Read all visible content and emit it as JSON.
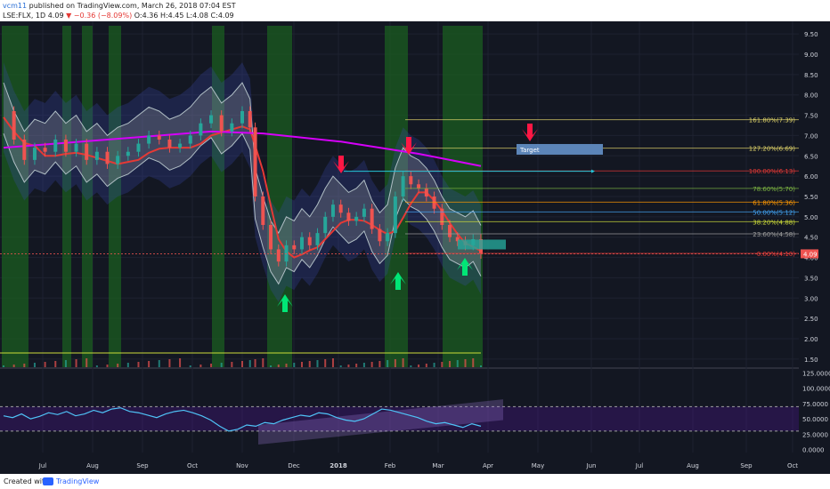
{
  "header": {
    "author": "vcm11",
    "published": "published on TradingView.com, March 26, 2018 07:04 EST",
    "symbol": "LSE:FLX, 1D",
    "last": "4.09",
    "change": "−0.36 (−8.09%)",
    "ohlc": "O:4.36 H:4.45 L:4.08 C:4.09"
  },
  "footer": {
    "created": "Created with",
    "brand": "TradingView"
  },
  "colors": {
    "background": "#131722",
    "up": "#26a69a",
    "down": "#ef5350",
    "green_band": "#1b5e20",
    "rsi": "#4fc3f7",
    "sma_long": "#d500f9",
    "bb": "#b0bec5",
    "arrow_down": "#ff1744",
    "arrow_up": "#00e676"
  },
  "chart_data": [
    {
      "type": "line",
      "panel": "price",
      "ylim": [
        1.3,
        9.7
      ],
      "y_ticks": [
        "9.50",
        "9.00",
        "8.50",
        "8.00",
        "7.50",
        "7.00",
        "6.50",
        "6.00",
        "5.50",
        "5.00",
        "4.50",
        "4.00",
        "3.50",
        "3.00",
        "2.50",
        "2.00",
        "1.50"
      ],
      "x_ticks": [
        "Jul",
        "Aug",
        "Sep",
        "Oct",
        "Nov",
        "Dec",
        "2018",
        "Feb",
        "Mar",
        "Apr",
        "May",
        "Jun",
        "Jul",
        "Aug",
        "Sep",
        "Oct"
      ],
      "last_price": "4.09",
      "price_series": [
        {
          "t": 0,
          "c": 7.6
        },
        {
          "t": 4,
          "c": 6.9
        },
        {
          "t": 8,
          "c": 6.4
        },
        {
          "t": 12,
          "c": 6.7
        },
        {
          "t": 16,
          "c": 6.6
        },
        {
          "t": 20,
          "c": 6.9
        },
        {
          "t": 24,
          "c": 6.6
        },
        {
          "t": 28,
          "c": 6.8
        },
        {
          "t": 32,
          "c": 6.4
        },
        {
          "t": 36,
          "c": 6.6
        },
        {
          "t": 40,
          "c": 6.3
        },
        {
          "t": 44,
          "c": 6.5
        },
        {
          "t": 48,
          "c": 6.6
        },
        {
          "t": 52,
          "c": 6.8
        },
        {
          "t": 56,
          "c": 7.0
        },
        {
          "t": 60,
          "c": 6.9
        },
        {
          "t": 64,
          "c": 6.7
        },
        {
          "t": 68,
          "c": 6.8
        },
        {
          "t": 72,
          "c": 7.0
        },
        {
          "t": 76,
          "c": 7.3
        },
        {
          "t": 80,
          "c": 7.5
        },
        {
          "t": 84,
          "c": 7.1
        },
        {
          "t": 88,
          "c": 7.3
        },
        {
          "t": 92,
          "c": 7.6
        },
        {
          "t": 95,
          "c": 7.2
        },
        {
          "t": 97,
          "c": 5.5
        },
        {
          "t": 100,
          "c": 4.8
        },
        {
          "t": 103,
          "c": 4.2
        },
        {
          "t": 106,
          "c": 3.9
        },
        {
          "t": 109,
          "c": 4.3
        },
        {
          "t": 112,
          "c": 4.2
        },
        {
          "t": 115,
          "c": 4.5
        },
        {
          "t": 118,
          "c": 4.3
        },
        {
          "t": 121,
          "c": 4.6
        },
        {
          "t": 124,
          "c": 5.0
        },
        {
          "t": 127,
          "c": 5.3
        },
        {
          "t": 130,
          "c": 5.1
        },
        {
          "t": 133,
          "c": 4.9
        },
        {
          "t": 136,
          "c": 5.0
        },
        {
          "t": 139,
          "c": 5.2
        },
        {
          "t": 142,
          "c": 4.7
        },
        {
          "t": 145,
          "c": 4.4
        },
        {
          "t": 148,
          "c": 4.6
        },
        {
          "t": 151,
          "c": 5.5
        },
        {
          "t": 154,
          "c": 6.0
        },
        {
          "t": 157,
          "c": 5.8
        },
        {
          "t": 160,
          "c": 5.7
        },
        {
          "t": 163,
          "c": 5.5
        },
        {
          "t": 166,
          "c": 5.2
        },
        {
          "t": 169,
          "c": 4.8
        },
        {
          "t": 172,
          "c": 4.5
        },
        {
          "t": 175,
          "c": 4.4
        },
        {
          "t": 178,
          "c": 4.3
        },
        {
          "t": 181,
          "c": 4.45
        },
        {
          "t": 184,
          "c": 4.09
        }
      ],
      "sma_long": [
        {
          "t": 0,
          "v": 6.7
        },
        {
          "t": 40,
          "v": 6.9
        },
        {
          "t": 80,
          "v": 7.1
        },
        {
          "t": 100,
          "v": 7.05
        },
        {
          "t": 130,
          "v": 6.85
        },
        {
          "t": 160,
          "v": 6.55
        },
        {
          "t": 184,
          "v": 6.25
        }
      ],
      "fibonacci": [
        {
          "label": "161.80%(7.39)",
          "value": 7.39,
          "color": "#e0d46a"
        },
        {
          "label": "127.20%(6.69)",
          "value": 6.69,
          "color": "#e0d46a"
        },
        {
          "label": "100.00%(6.13)",
          "value": 6.13,
          "color": "#e53935"
        },
        {
          "label": "78.60%(5.70)",
          "value": 5.7,
          "color": "#7cb342"
        },
        {
          "label": "61.80%(5.36)",
          "value": 5.36,
          "color": "#ff9800"
        },
        {
          "label": "50.00%(5.12)",
          "value": 5.12,
          "color": "#42a5f5"
        },
        {
          "label": "38.20%(4.88)",
          "value": 4.88,
          "color": "#cddc39"
        },
        {
          "label": "23.60%(4.58)",
          "value": 4.58,
          "color": "#9e9e9e"
        },
        {
          "label": "0.00%(4.10)",
          "value": 4.1,
          "color": "#e53935"
        }
      ],
      "annotations": {
        "target_label": "Target"
      }
    },
    {
      "type": "line",
      "panel": "rsi",
      "ylim": [
        -5,
        130
      ],
      "y_ticks": [
        "125.0000",
        "100.0000",
        "75.0000",
        "50.0000",
        "25.0000",
        "0.0000"
      ],
      "series": [
        {
          "values": [
            55,
            52,
            58,
            50,
            54,
            60,
            57,
            62,
            55,
            58,
            64,
            60,
            66,
            68,
            62,
            60,
            56,
            52,
            58,
            62,
            64,
            60,
            55,
            48,
            38,
            30,
            33,
            40,
            38,
            44,
            42,
            48,
            52,
            56,
            54,
            60,
            58,
            52,
            48,
            46,
            50,
            58,
            66,
            64,
            60,
            56,
            52,
            46,
            42,
            44,
            40,
            36,
            42,
            38
          ]
        }
      ],
      "bands": [
        70,
        30
      ]
    }
  ]
}
